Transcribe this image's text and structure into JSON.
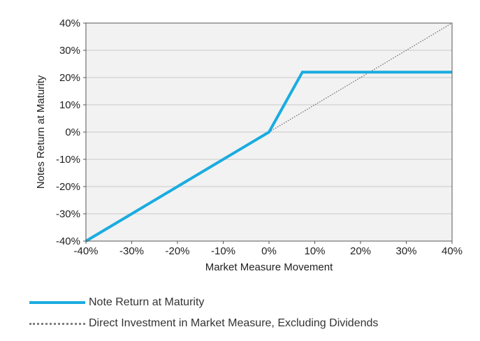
{
  "chart_data": {
    "type": "line",
    "title": "",
    "xlabel": "Market Measure Movement",
    "ylabel": "Notes Return at Maturity",
    "xlim": [
      -40,
      40
    ],
    "ylim": [
      -40,
      40
    ],
    "x_ticks": [
      -40,
      -30,
      -20,
      -10,
      0,
      10,
      20,
      30,
      40
    ],
    "y_ticks": [
      -40,
      -30,
      -20,
      -10,
      0,
      10,
      20,
      30,
      40
    ],
    "x_tick_labels": [
      "-40%",
      "-30%",
      "-20%",
      "-10%",
      "0%",
      "10%",
      "20%",
      "30%",
      "40%"
    ],
    "y_tick_labels": [
      "-40%",
      "-30%",
      "-20%",
      "-10%",
      "0%",
      "10%",
      "20%",
      "30%",
      "40%"
    ],
    "grid": "horizontal",
    "legend_position": "bottom",
    "plot_background": "#f2f2f2",
    "series": [
      {
        "name": "Note Return at Maturity",
        "style": "solid",
        "color": "#1aace0",
        "points": [
          [
            -40,
            -40
          ],
          [
            0,
            0
          ],
          [
            7.3,
            22
          ],
          [
            40,
            22
          ]
        ]
      },
      {
        "name": "Direct Investment in Market Measure, Excluding Dividends",
        "style": "dotted",
        "color": "#666666",
        "points": [
          [
            0,
            0
          ],
          [
            40,
            40
          ]
        ]
      }
    ]
  }
}
